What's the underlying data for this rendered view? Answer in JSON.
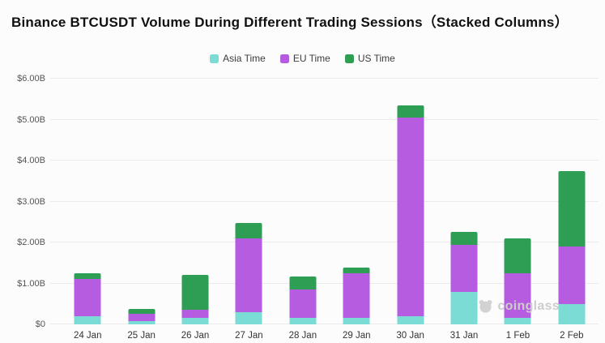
{
  "watermark": {
    "label": "coinglass"
  },
  "chart_data": {
    "type": "bar",
    "stacked": true,
    "title": "Binance BTCUSDT Volume During Different Trading Sessions（Stacked Columns）",
    "categories": [
      "24 Jan",
      "25 Jan",
      "26 Jan",
      "27 Jan",
      "28 Jan",
      "29 Jan",
      "30 Jan",
      "31 Jan",
      "1 Feb",
      "2 Feb"
    ],
    "series": [
      {
        "name": "Asia Time",
        "color": "#7bdcd5",
        "values": [
          0.2,
          0.08,
          0.15,
          0.3,
          0.15,
          0.15,
          0.2,
          0.8,
          0.15,
          0.5
        ]
      },
      {
        "name": "EU Time",
        "color": "#b55ce0",
        "values": [
          0.9,
          0.17,
          0.2,
          1.8,
          0.7,
          1.1,
          4.85,
          1.15,
          1.1,
          1.4
        ]
      },
      {
        "name": "US Time",
        "color": "#2e9e55",
        "values": [
          0.15,
          0.12,
          0.85,
          0.37,
          0.32,
          0.13,
          0.3,
          0.3,
          0.85,
          1.85
        ]
      }
    ],
    "xlabel": "",
    "ylabel": "",
    "ylim": [
      0,
      6
    ],
    "yticks": [
      "$0",
      "$1.00B",
      "$2.00B",
      "$3.00B",
      "$4.00B",
      "$5.00B",
      "$6.00B"
    ],
    "grid": true,
    "legend_position": "top"
  }
}
